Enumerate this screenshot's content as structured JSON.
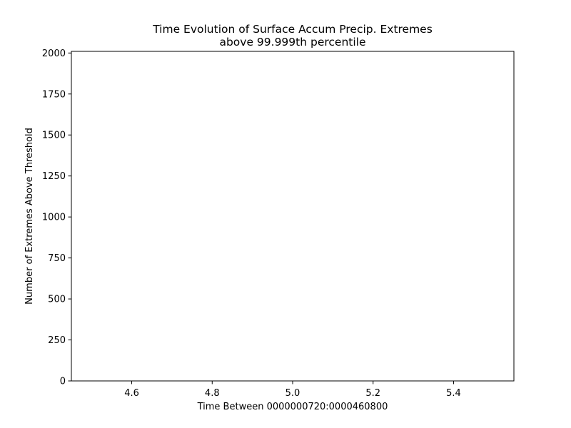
{
  "chart_data": {
    "type": "line",
    "title": "Time Evolution of Surface Accum Precip. Extremes",
    "subtitle": "above 99.999th percentile",
    "xlabel": "Time Between 0000000720:0000460800",
    "ylabel": "Number of Extremes Above Threshold",
    "xlim": [
      4.45,
      5.55
    ],
    "ylim": [
      0,
      2010
    ],
    "x_ticks": [
      4.6,
      4.8,
      5.0,
      5.2,
      5.4
    ],
    "x_tick_labels": [
      "4.6",
      "4.8",
      "5.0",
      "5.2",
      "5.4"
    ],
    "y_ticks": [
      0,
      250,
      500,
      750,
      1000,
      1250,
      1500,
      1750,
      2000
    ],
    "y_tick_labels": [
      "0",
      "250",
      "500",
      "750",
      "1000",
      "1250",
      "1500",
      "1750",
      "2000"
    ],
    "series": [],
    "grid": false,
    "legend": "none"
  }
}
